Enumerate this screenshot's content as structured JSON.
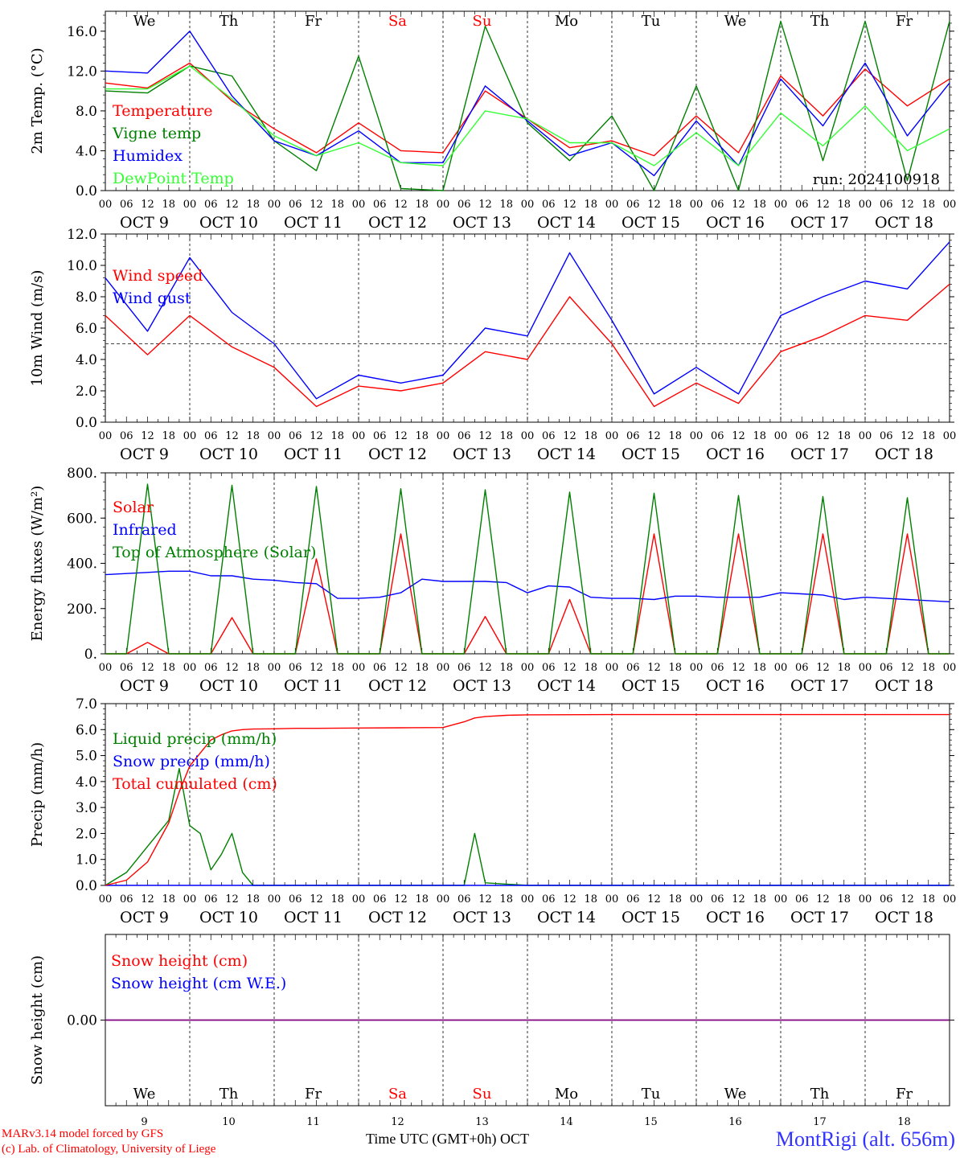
{
  "colors": {
    "red": "#ff0000",
    "green": "#008000",
    "blue": "#0000ff",
    "lightgreen": "#33ff33",
    "purple": "#800080",
    "weekend": "#ff0000",
    "weekday": "#000000",
    "station": "#3333ff"
  },
  "days": {
    "top_labels": [
      "We",
      "Th",
      "Fr",
      "Sa",
      "Su",
      "Mo",
      "Tu",
      "We",
      "Th",
      "Fr"
    ],
    "weekend": [
      false,
      false,
      false,
      true,
      true,
      false,
      false,
      false,
      false,
      false
    ],
    "date_labels": [
      "OCT  9",
      "OCT 10",
      "OCT 11",
      "OCT 12",
      "OCT 13",
      "OCT 14",
      "OCT 15",
      "OCT 16",
      "OCT 17",
      "OCT 18"
    ],
    "day_numbers": [
      "9",
      "10",
      "11",
      "12",
      "13",
      "14",
      "15",
      "16",
      "17",
      "18"
    ]
  },
  "hour_labels": [
    "00",
    "06",
    "12",
    "18"
  ],
  "final_hour_label": "00",
  "footer": {
    "credit_line1": "MARv3.14 model forced by GFS",
    "credit_line2": "(c) Lab. of Climatology, University of Liege",
    "x_title": "Time UTC (GMT+0h) OCT",
    "station": "MontRigi (alt. 656m)"
  },
  "chart_data": [
    {
      "type": "line",
      "ylabel": "2m Temp. (°C)",
      "ylim": [
        0,
        18
      ],
      "yticks": [
        0,
        4,
        8,
        12,
        16
      ],
      "ytick_labels": [
        "0.0",
        "4.0",
        "8.0",
        "12.0",
        "16.0"
      ],
      "annotation": "run: 2024100918",
      "x": [
        0,
        12,
        24,
        36,
        48,
        60,
        72,
        84,
        96,
        108,
        120,
        132,
        144,
        156,
        168,
        180,
        192,
        204,
        216,
        228,
        240
      ],
      "series": [
        {
          "name": "Temperature",
          "color": "red",
          "values": [
            10.8,
            10.3,
            12.8,
            9.0,
            6.2,
            3.8,
            6.8,
            4.0,
            3.8,
            10.0,
            7.2,
            4.3,
            5.0,
            3.5,
            7.5,
            3.8,
            11.5,
            7.5,
            12.2,
            8.5,
            11.2
          ]
        },
        {
          "name": "Vigne temp",
          "color": "green",
          "values": [
            10.0,
            9.8,
            12.5,
            11.5,
            5.0,
            2.0,
            13.5,
            0.2,
            0.0,
            16.5,
            6.8,
            3.0,
            7.5,
            0.0,
            10.5,
            0.0,
            17.0,
            3.0,
            17.0,
            1.0,
            17.0
          ]
        },
        {
          "name": "Humidex",
          "color": "blue",
          "values": [
            12.0,
            11.8,
            16.0,
            9.5,
            5.0,
            3.5,
            6.0,
            2.8,
            2.8,
            10.5,
            7.0,
            3.5,
            4.8,
            1.5,
            7.0,
            2.5,
            11.2,
            6.5,
            12.8,
            5.5,
            10.8
          ]
        },
        {
          "name": "DewPoint Temp",
          "color": "lightgreen",
          "values": [
            10.2,
            10.2,
            12.5,
            9.2,
            5.5,
            3.5,
            4.8,
            2.8,
            2.5,
            8.0,
            7.2,
            4.8,
            4.8,
            2.5,
            5.8,
            2.5,
            7.8,
            4.5,
            8.5,
            4.0,
            6.2
          ]
        }
      ]
    },
    {
      "type": "line",
      "ylabel": "10m Wind (m/s)",
      "ylim": [
        0,
        12
      ],
      "yticks": [
        0,
        2,
        4,
        6,
        8,
        10,
        12
      ],
      "ytick_labels": [
        "0.0",
        "2.0",
        "4.0",
        "6.0",
        "8.0",
        "10.0",
        "12.0"
      ],
      "reference_line": 5.0,
      "x": [
        0,
        12,
        24,
        36,
        48,
        60,
        72,
        84,
        96,
        108,
        120,
        132,
        144,
        156,
        168,
        180,
        192,
        204,
        216,
        228,
        240
      ],
      "series": [
        {
          "name": "Wind speed",
          "color": "red",
          "values": [
            6.8,
            4.3,
            6.8,
            4.8,
            3.5,
            1.0,
            2.3,
            2.0,
            2.5,
            4.5,
            4.0,
            8.0,
            5.0,
            1.0,
            2.5,
            1.2,
            4.5,
            5.5,
            6.8,
            6.5,
            8.8
          ]
        },
        {
          "name": "Wind gust",
          "color": "blue",
          "values": [
            9.2,
            5.8,
            10.5,
            7.0,
            5.0,
            1.5,
            3.0,
            2.5,
            3.0,
            6.0,
            5.5,
            10.8,
            6.5,
            1.8,
            3.5,
            1.8,
            6.8,
            8.0,
            9.0,
            8.5,
            11.5
          ]
        }
      ]
    },
    {
      "type": "line",
      "ylabel": "Energy fluxes (W/m²)",
      "ylim": [
        0,
        800
      ],
      "yticks": [
        0,
        200,
        400,
        600,
        800
      ],
      "ytick_labels": [
        "0.",
        "200.",
        "400.",
        "600.",
        "800."
      ],
      "x": [
        0,
        6,
        12,
        18,
        24,
        30,
        36,
        42,
        48,
        54,
        60,
        66,
        72,
        78,
        84,
        90,
        96,
        102,
        108,
        114,
        120,
        126,
        132,
        138,
        144,
        150,
        156,
        162,
        168,
        174,
        180,
        186,
        192,
        198,
        204,
        210,
        216,
        222,
        228,
        234,
        240
      ],
      "series": [
        {
          "name": "Solar",
          "color": "red",
          "values": [
            0,
            0,
            50,
            0,
            0,
            0,
            160,
            0,
            0,
            0,
            420,
            0,
            0,
            0,
            530,
            0,
            0,
            0,
            165,
            0,
            0,
            0,
            240,
            0,
            0,
            0,
            530,
            0,
            0,
            0,
            530,
            0,
            0,
            0,
            530,
            0,
            0,
            0,
            530,
            0,
            0
          ]
        },
        {
          "name": "Infrared",
          "color": "blue",
          "values": [
            350,
            355,
            360,
            365,
            365,
            345,
            345,
            330,
            325,
            315,
            310,
            245,
            245,
            250,
            270,
            330,
            320,
            320,
            320,
            315,
            270,
            300,
            295,
            250,
            245,
            245,
            240,
            255,
            255,
            250,
            250,
            250,
            270,
            265,
            260,
            240,
            250,
            245,
            240,
            235,
            230
          ]
        },
        {
          "name": "Top of Atmosphere (Solar)",
          "color": "green",
          "values": [
            0,
            0,
            750,
            0,
            0,
            0,
            745,
            0,
            0,
            0,
            740,
            0,
            0,
            0,
            730,
            0,
            0,
            0,
            725,
            0,
            0,
            0,
            715,
            0,
            0,
            0,
            710,
            0,
            0,
            0,
            700,
            0,
            0,
            0,
            695,
            0,
            0,
            0,
            690,
            0,
            0
          ]
        }
      ]
    },
    {
      "type": "line",
      "ylabel": "Precip (mm/h)",
      "ylim": [
        0,
        7
      ],
      "yticks": [
        0,
        1,
        2,
        3,
        4,
        5,
        6,
        7
      ],
      "ytick_labels": [
        "0.0",
        "1.0",
        "2.0",
        "3.0",
        "4.0",
        "5.0",
        "6.0",
        "7.0"
      ],
      "x": [
        0,
        6,
        12,
        18,
        21,
        24,
        27,
        30,
        33,
        36,
        39,
        42,
        48,
        54,
        60,
        72,
        84,
        96,
        102,
        105,
        108,
        114,
        120,
        144,
        180,
        240
      ],
      "series": [
        {
          "name": "Liquid precip (mm/h)",
          "color": "green",
          "values": [
            0,
            0.5,
            1.5,
            2.5,
            4.5,
            2.3,
            2.0,
            0.6,
            1.2,
            2.0,
            0.5,
            0.0,
            0,
            0,
            0,
            0,
            0,
            0,
            0,
            2.0,
            0.1,
            0.05,
            0,
            0,
            0,
            0
          ]
        },
        {
          "name": "Snow precip (mm/h)",
          "color": "blue",
          "values": [
            0,
            0,
            0,
            0,
            0,
            0,
            0,
            0,
            0,
            0,
            0,
            0,
            0,
            0,
            0,
            0,
            0,
            0,
            0,
            0,
            0,
            0,
            0,
            0,
            0,
            0
          ]
        },
        {
          "name": "Total cumulated (cm)",
          "color": "red",
          "values": [
            0,
            0.2,
            0.9,
            2.4,
            3.6,
            4.6,
            5.1,
            5.6,
            5.8,
            5.95,
            6.0,
            6.02,
            6.03,
            6.05,
            6.05,
            6.06,
            6.07,
            6.08,
            6.3,
            6.45,
            6.5,
            6.55,
            6.57,
            6.58,
            6.58,
            6.58
          ]
        }
      ]
    },
    {
      "type": "line",
      "ylabel": "Snow height (cm)",
      "ylim": [
        -1,
        1
      ],
      "yticks": [
        0
      ],
      "ytick_labels": [
        "0.00"
      ],
      "x": [
        0,
        240
      ],
      "series": [
        {
          "name": "Snow height (cm)",
          "color": "red",
          "values": [
            0,
            0
          ]
        },
        {
          "name": "Snow height (cm W.E.)",
          "color": "blue",
          "values": [
            0,
            0
          ]
        }
      ]
    }
  ]
}
